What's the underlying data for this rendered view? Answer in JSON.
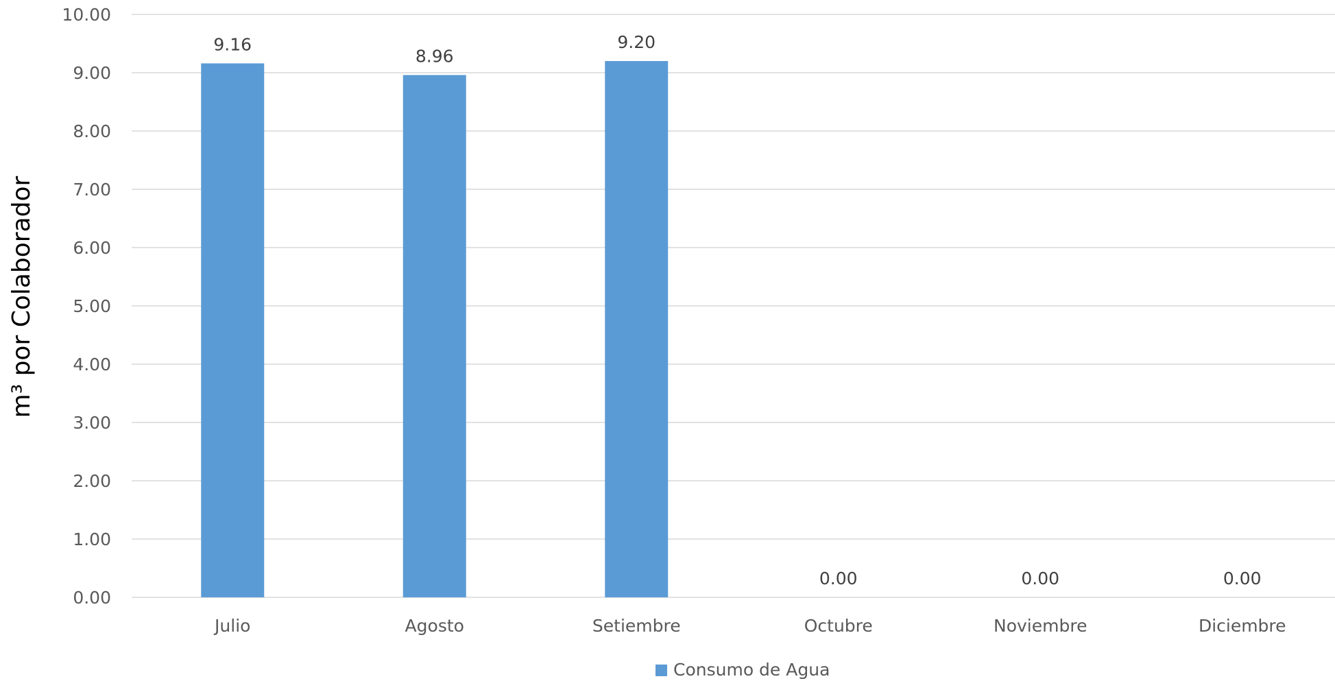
{
  "chart_data": {
    "type": "bar",
    "categories": [
      "Julio",
      "Agosto",
      "Setiembre",
      "Octubre",
      "Noviembre",
      "Diciembre"
    ],
    "series": [
      {
        "name": "Consumo de Agua",
        "values": [
          9.16,
          8.96,
          9.2,
          0.0,
          0.0,
          0.0
        ],
        "data_labels": [
          "9.16",
          "8.96",
          "9.20",
          "0.00",
          "0.00",
          "0.00"
        ],
        "color": "#5B9BD5"
      }
    ],
    "title": "",
    "xlabel": "",
    "ylabel": "m³ por Colaborador",
    "ylim": [
      0,
      10
    ],
    "yticks": [
      "0.00",
      "1.00",
      "2.00",
      "3.00",
      "4.00",
      "5.00",
      "6.00",
      "7.00",
      "8.00",
      "9.00",
      "10.00"
    ],
    "grid": true,
    "legend": {
      "placement": "bottom",
      "label": "Consumo de Agua"
    },
    "colors": {
      "bar": "#5B9BD5",
      "grid": "#D9D9D9",
      "tick_text": "#595959",
      "data_label_text": "#404040",
      "axis_title_text": "#000000"
    }
  }
}
